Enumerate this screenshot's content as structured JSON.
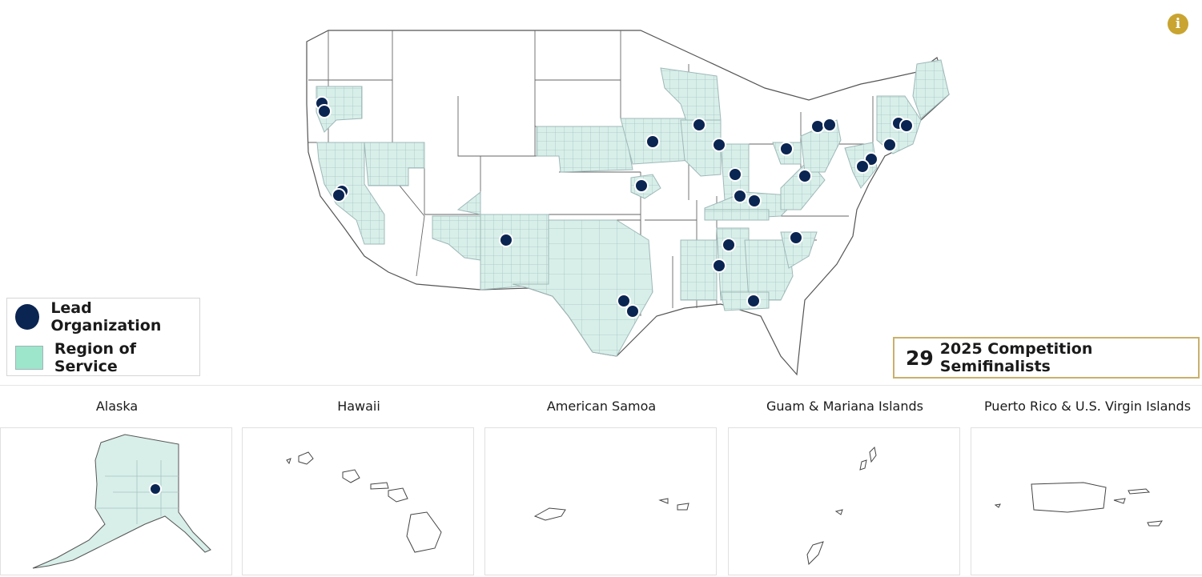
{
  "legend": {
    "lead_label": "Lead Organization",
    "region_label": "Region of Service"
  },
  "summary": {
    "count": "29",
    "label": "2025 Competition Semifinalists"
  },
  "colors": {
    "lead": "#0b2552",
    "region_fill": "#d5ede6",
    "county_line": "#a9c3c3",
    "accent": "#c9a430"
  },
  "info_icon": "info-icon",
  "territories": [
    {
      "name": "Alaska"
    },
    {
      "name": "Hawaii"
    },
    {
      "name": "American Samoa"
    },
    {
      "name": "Guam & Mariana Islands"
    },
    {
      "name": "Puerto Rico & U.S. Virgin Islands"
    }
  ]
}
